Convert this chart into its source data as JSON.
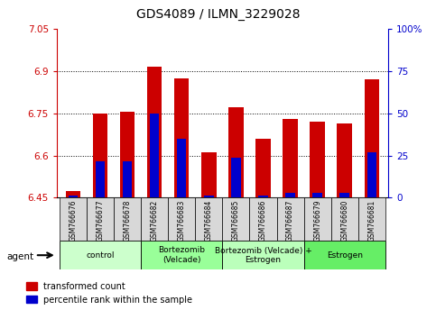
{
  "title": "GDS4089 / ILMN_3229028",
  "samples": [
    "GSM766676",
    "GSM766677",
    "GSM766678",
    "GSM766682",
    "GSM766683",
    "GSM766684",
    "GSM766685",
    "GSM766686",
    "GSM766687",
    "GSM766679",
    "GSM766680",
    "GSM766681"
  ],
  "red_values": [
    6.475,
    6.75,
    6.755,
    6.915,
    6.875,
    6.61,
    6.77,
    6.66,
    6.73,
    6.72,
    6.715,
    6.87
  ],
  "blue_top": [
    6.458,
    6.578,
    6.578,
    6.748,
    6.66,
    6.458,
    6.592,
    6.458,
    6.468,
    6.468,
    6.466,
    6.612
  ],
  "ymin": 6.45,
  "ymax": 7.05,
  "yticks": [
    6.45,
    6.6,
    6.75,
    6.9,
    7.05
  ],
  "ytick_labels": [
    "6.45",
    "6.6",
    "6.75",
    "6.9",
    "7.05"
  ],
  "gridlines": [
    6.6,
    6.75,
    6.9
  ],
  "right_yticks": [
    0,
    25,
    50,
    75,
    100
  ],
  "right_ytick_labels": [
    "0",
    "25",
    "50",
    "75",
    "100%"
  ],
  "groups": [
    {
      "label": "control",
      "start": 0,
      "end": 3,
      "color": "#ccffcc"
    },
    {
      "label": "Bortezomib\n(Velcade)",
      "start": 3,
      "end": 6,
      "color": "#99ff99"
    },
    {
      "label": "Bortezomib (Velcade) +\nEstrogen",
      "start": 6,
      "end": 9,
      "color": "#bbffbb"
    },
    {
      "label": "Estrogen",
      "start": 9,
      "end": 12,
      "color": "#66ee66"
    }
  ],
  "bar_color": "#cc0000",
  "blue_color": "#0000cc",
  "left_axis_color": "#cc0000",
  "right_axis_color": "#0000cc",
  "bar_width": 0.55,
  "blue_bar_width": 0.35
}
